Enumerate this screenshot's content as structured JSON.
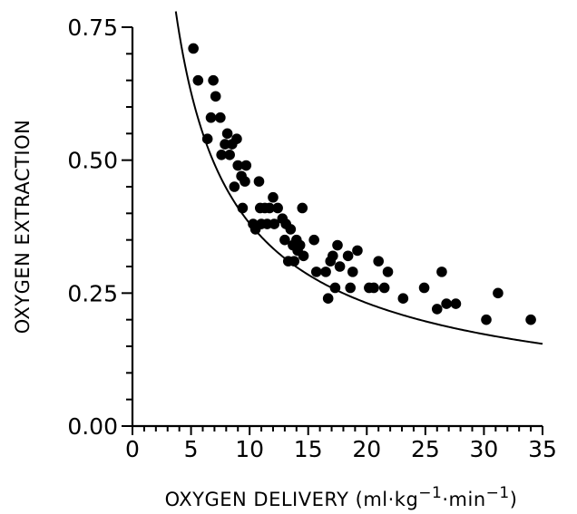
{
  "chart_data": {
    "type": "scatter",
    "xlabel": "OXYGEN DELIVERY (ml·kg",
    "xlabel_sup1": "−1",
    "xlabel_mid": "·min",
    "xlabel_sup2": "−1",
    "xlabel_end": ")",
    "ylabel": "OXYGEN EXTRACTION",
    "xlim": [
      0,
      35
    ],
    "ylim": [
      0,
      0.75
    ],
    "x_ticks": [
      0,
      5,
      10,
      15,
      20,
      25,
      30,
      35
    ],
    "x_tick_labels": [
      "0",
      "5",
      "10",
      "15",
      "20",
      "25",
      "30",
      "35"
    ],
    "y_ticks": [
      0,
      0.25,
      0.5,
      0.75
    ],
    "y_tick_labels": [
      "0.00",
      "0.25",
      "0.50",
      "0.75"
    ],
    "grid": false,
    "points": [
      [
        5.2,
        0.71
      ],
      [
        5.6,
        0.65
      ],
      [
        6.4,
        0.54
      ],
      [
        6.7,
        0.58
      ],
      [
        6.9,
        0.65
      ],
      [
        7.1,
        0.62
      ],
      [
        7.5,
        0.58
      ],
      [
        7.6,
        0.51
      ],
      [
        7.9,
        0.53
      ],
      [
        8.1,
        0.55
      ],
      [
        8.3,
        0.51
      ],
      [
        8.5,
        0.53
      ],
      [
        8.7,
        0.45
      ],
      [
        8.9,
        0.54
      ],
      [
        9.0,
        0.49
      ],
      [
        9.3,
        0.47
      ],
      [
        9.4,
        0.41
      ],
      [
        9.6,
        0.46
      ],
      [
        9.7,
        0.49
      ],
      [
        10.3,
        0.38
      ],
      [
        10.5,
        0.37
      ],
      [
        10.8,
        0.46
      ],
      [
        10.9,
        0.41
      ],
      [
        11.0,
        0.38
      ],
      [
        11.3,
        0.41
      ],
      [
        11.5,
        0.38
      ],
      [
        11.7,
        0.41
      ],
      [
        12.0,
        0.43
      ],
      [
        12.1,
        0.38
      ],
      [
        12.4,
        0.41
      ],
      [
        12.8,
        0.39
      ],
      [
        13.0,
        0.35
      ],
      [
        13.1,
        0.38
      ],
      [
        13.3,
        0.31
      ],
      [
        13.5,
        0.37
      ],
      [
        13.7,
        0.34
      ],
      [
        13.8,
        0.31
      ],
      [
        14.0,
        0.35
      ],
      [
        14.1,
        0.33
      ],
      [
        14.3,
        0.34
      ],
      [
        14.5,
        0.41
      ],
      [
        14.6,
        0.32
      ],
      [
        15.5,
        0.35
      ],
      [
        15.7,
        0.29
      ],
      [
        16.5,
        0.29
      ],
      [
        16.7,
        0.24
      ],
      [
        16.9,
        0.31
      ],
      [
        17.1,
        0.32
      ],
      [
        17.3,
        0.26
      ],
      [
        17.5,
        0.34
      ],
      [
        17.7,
        0.3
      ],
      [
        18.4,
        0.32
      ],
      [
        18.6,
        0.26
      ],
      [
        18.8,
        0.29
      ],
      [
        19.2,
        0.33
      ],
      [
        20.2,
        0.26
      ],
      [
        20.6,
        0.26
      ],
      [
        21.0,
        0.31
      ],
      [
        21.5,
        0.26
      ],
      [
        21.8,
        0.29
      ],
      [
        23.1,
        0.24
      ],
      [
        24.9,
        0.26
      ],
      [
        26.0,
        0.22
      ],
      [
        26.4,
        0.29
      ],
      [
        26.8,
        0.23
      ],
      [
        27.6,
        0.23
      ],
      [
        30.2,
        0.2
      ],
      [
        31.2,
        0.25
      ],
      [
        34.0,
        0.2
      ]
    ],
    "fit_curve": {
      "type": "power",
      "a": 2.0,
      "b": -0.72,
      "x_range": [
        3.7,
        35
      ]
    }
  }
}
